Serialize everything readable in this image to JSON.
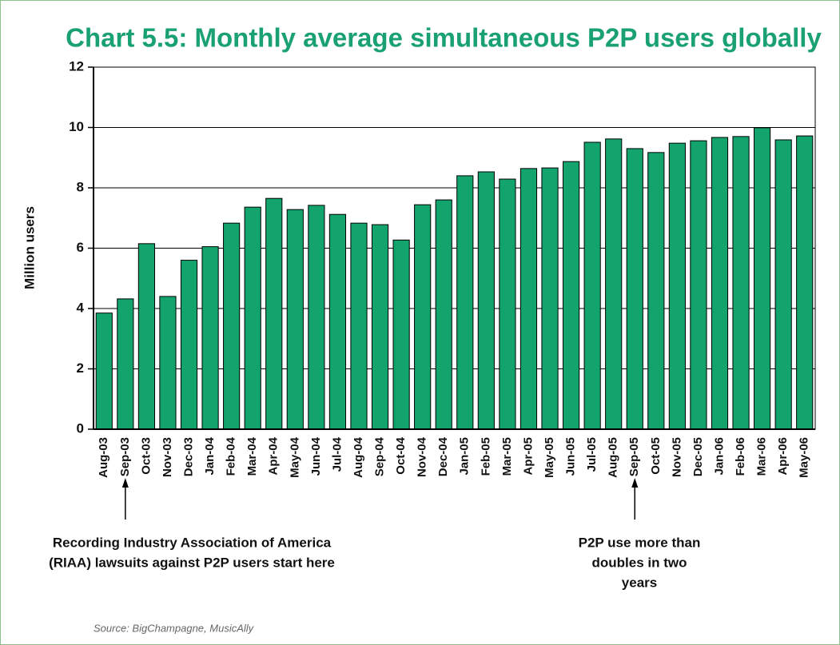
{
  "chart_data": {
    "type": "bar",
    "title": "Chart 5.5: Monthly average simultaneous P2P users globally",
    "y_label": "Million users",
    "categories": [
      "Aug-03",
      "Sep-03",
      "Oct-03",
      "Nov-03",
      "Dec-03",
      "Jan-04",
      "Feb-04",
      "Mar-04",
      "Apr-04",
      "May-04",
      "Jun-04",
      "Jul-04",
      "Aug-04",
      "Sep-04",
      "Oct-04",
      "Nov-04",
      "Dec-04",
      "Jan-05",
      "Feb-05",
      "Mar-05",
      "Apr-05",
      "May-05",
      "Jun-05",
      "Jul-05",
      "Aug-05",
      "Sep-05",
      "Oct-05",
      "Nov-05",
      "Dec-05",
      "Jan-06",
      "Feb-06",
      "Mar-06",
      "Apr-06",
      "May-06"
    ],
    "values": [
      3.85,
      4.32,
      6.15,
      4.4,
      5.6,
      6.05,
      6.83,
      7.36,
      7.65,
      7.28,
      7.42,
      7.12,
      6.83,
      6.78,
      6.27,
      7.44,
      7.6,
      8.4,
      8.53,
      8.29,
      8.64,
      8.66,
      8.87,
      9.51,
      9.62,
      9.3,
      9.17,
      9.48,
      9.56,
      9.67,
      9.7,
      9.99,
      9.59,
      9.72
    ],
    "color": "#13a46d",
    "ylim": [
      0,
      12
    ],
    "yticks": [
      0,
      2,
      4,
      6,
      8,
      10,
      12
    ],
    "grid": true,
    "annotations": [
      {
        "lines": [
          "Recording Industry Association of America",
          "(RIAA) lawsuits against P2P users start here"
        ]
      },
      {
        "lines": [
          "P2P use more than",
          "doubles in two",
          "years"
        ]
      }
    ],
    "source": "Source: BigChampagne, MusicAlly"
  }
}
